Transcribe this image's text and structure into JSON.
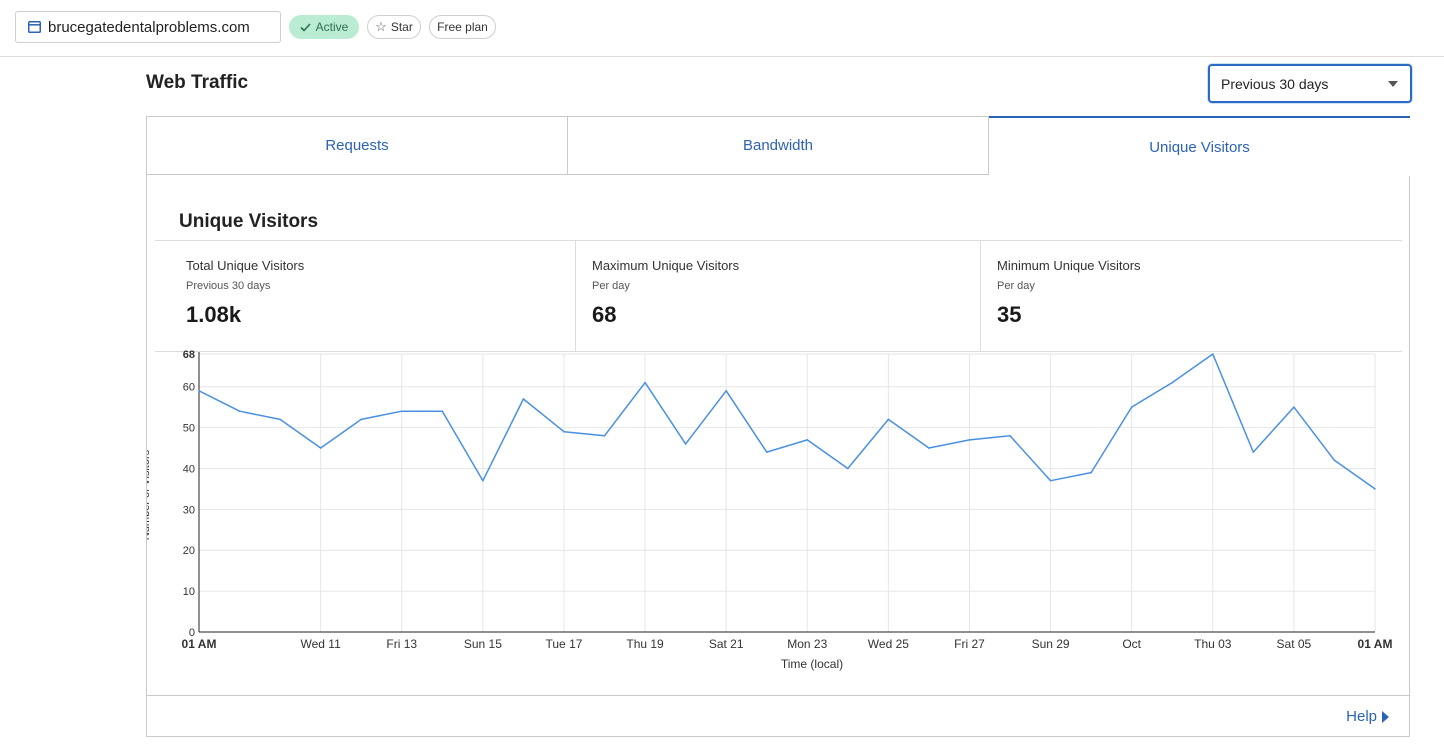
{
  "topbar": {
    "domain": "brucegatedentalproblems.com",
    "status_badge": "Active",
    "star_label": "Star",
    "plan_badge": "Free plan"
  },
  "header": {
    "title": "Web Traffic",
    "period_selected": "Previous 30 days"
  },
  "tabs": [
    {
      "label": "Requests"
    },
    {
      "label": "Bandwidth"
    },
    {
      "label": "Unique Visitors"
    }
  ],
  "active_tab": "Unique Visitors",
  "section": {
    "title": "Unique Visitors",
    "stats": [
      {
        "label": "Total Unique Visitors",
        "sub": "Previous 30 days",
        "value": "1.08k"
      },
      {
        "label": "Maximum Unique Visitors",
        "sub": "Per day",
        "value": "68"
      },
      {
        "label": "Minimum Unique Visitors",
        "sub": "Per day",
        "value": "35"
      }
    ]
  },
  "chart_data": {
    "type": "line",
    "xlabel": "Time (local)",
    "ylabel": "Number of Visitors",
    "ylim": [
      0,
      68
    ],
    "yticks": [
      "0",
      "10",
      "20",
      "30",
      "40",
      "50",
      "60",
      "68"
    ],
    "xticks": [
      {
        "i": 0,
        "label": "01 AM",
        "bold": true
      },
      {
        "i": 3,
        "label": "Wed 11"
      },
      {
        "i": 5,
        "label": "Fri 13"
      },
      {
        "i": 7,
        "label": "Sun 15"
      },
      {
        "i": 9,
        "label": "Tue 17"
      },
      {
        "i": 11,
        "label": "Thu 19"
      },
      {
        "i": 13,
        "label": "Sat 21"
      },
      {
        "i": 15,
        "label": "Mon 23"
      },
      {
        "i": 17,
        "label": "Wed 25"
      },
      {
        "i": 19,
        "label": "Fri 27"
      },
      {
        "i": 21,
        "label": "Sun 29"
      },
      {
        "i": 23,
        "label": "Oct"
      },
      {
        "i": 25,
        "label": "Thu 03"
      },
      {
        "i": 27,
        "label": "Sat 05"
      },
      {
        "i": 29,
        "label": "01 AM",
        "bold": true
      }
    ],
    "series": [
      {
        "values": [
          59,
          54,
          52,
          45,
          52,
          54,
          54,
          37,
          57,
          49,
          48,
          61,
          46,
          59,
          44,
          47,
          40,
          52,
          45,
          47,
          48,
          37,
          39,
          55,
          61,
          68,
          44,
          55,
          42,
          35
        ]
      }
    ],
    "grid": true,
    "line_color": "#4a90e2"
  },
  "footer": {
    "help_label": "Help"
  }
}
